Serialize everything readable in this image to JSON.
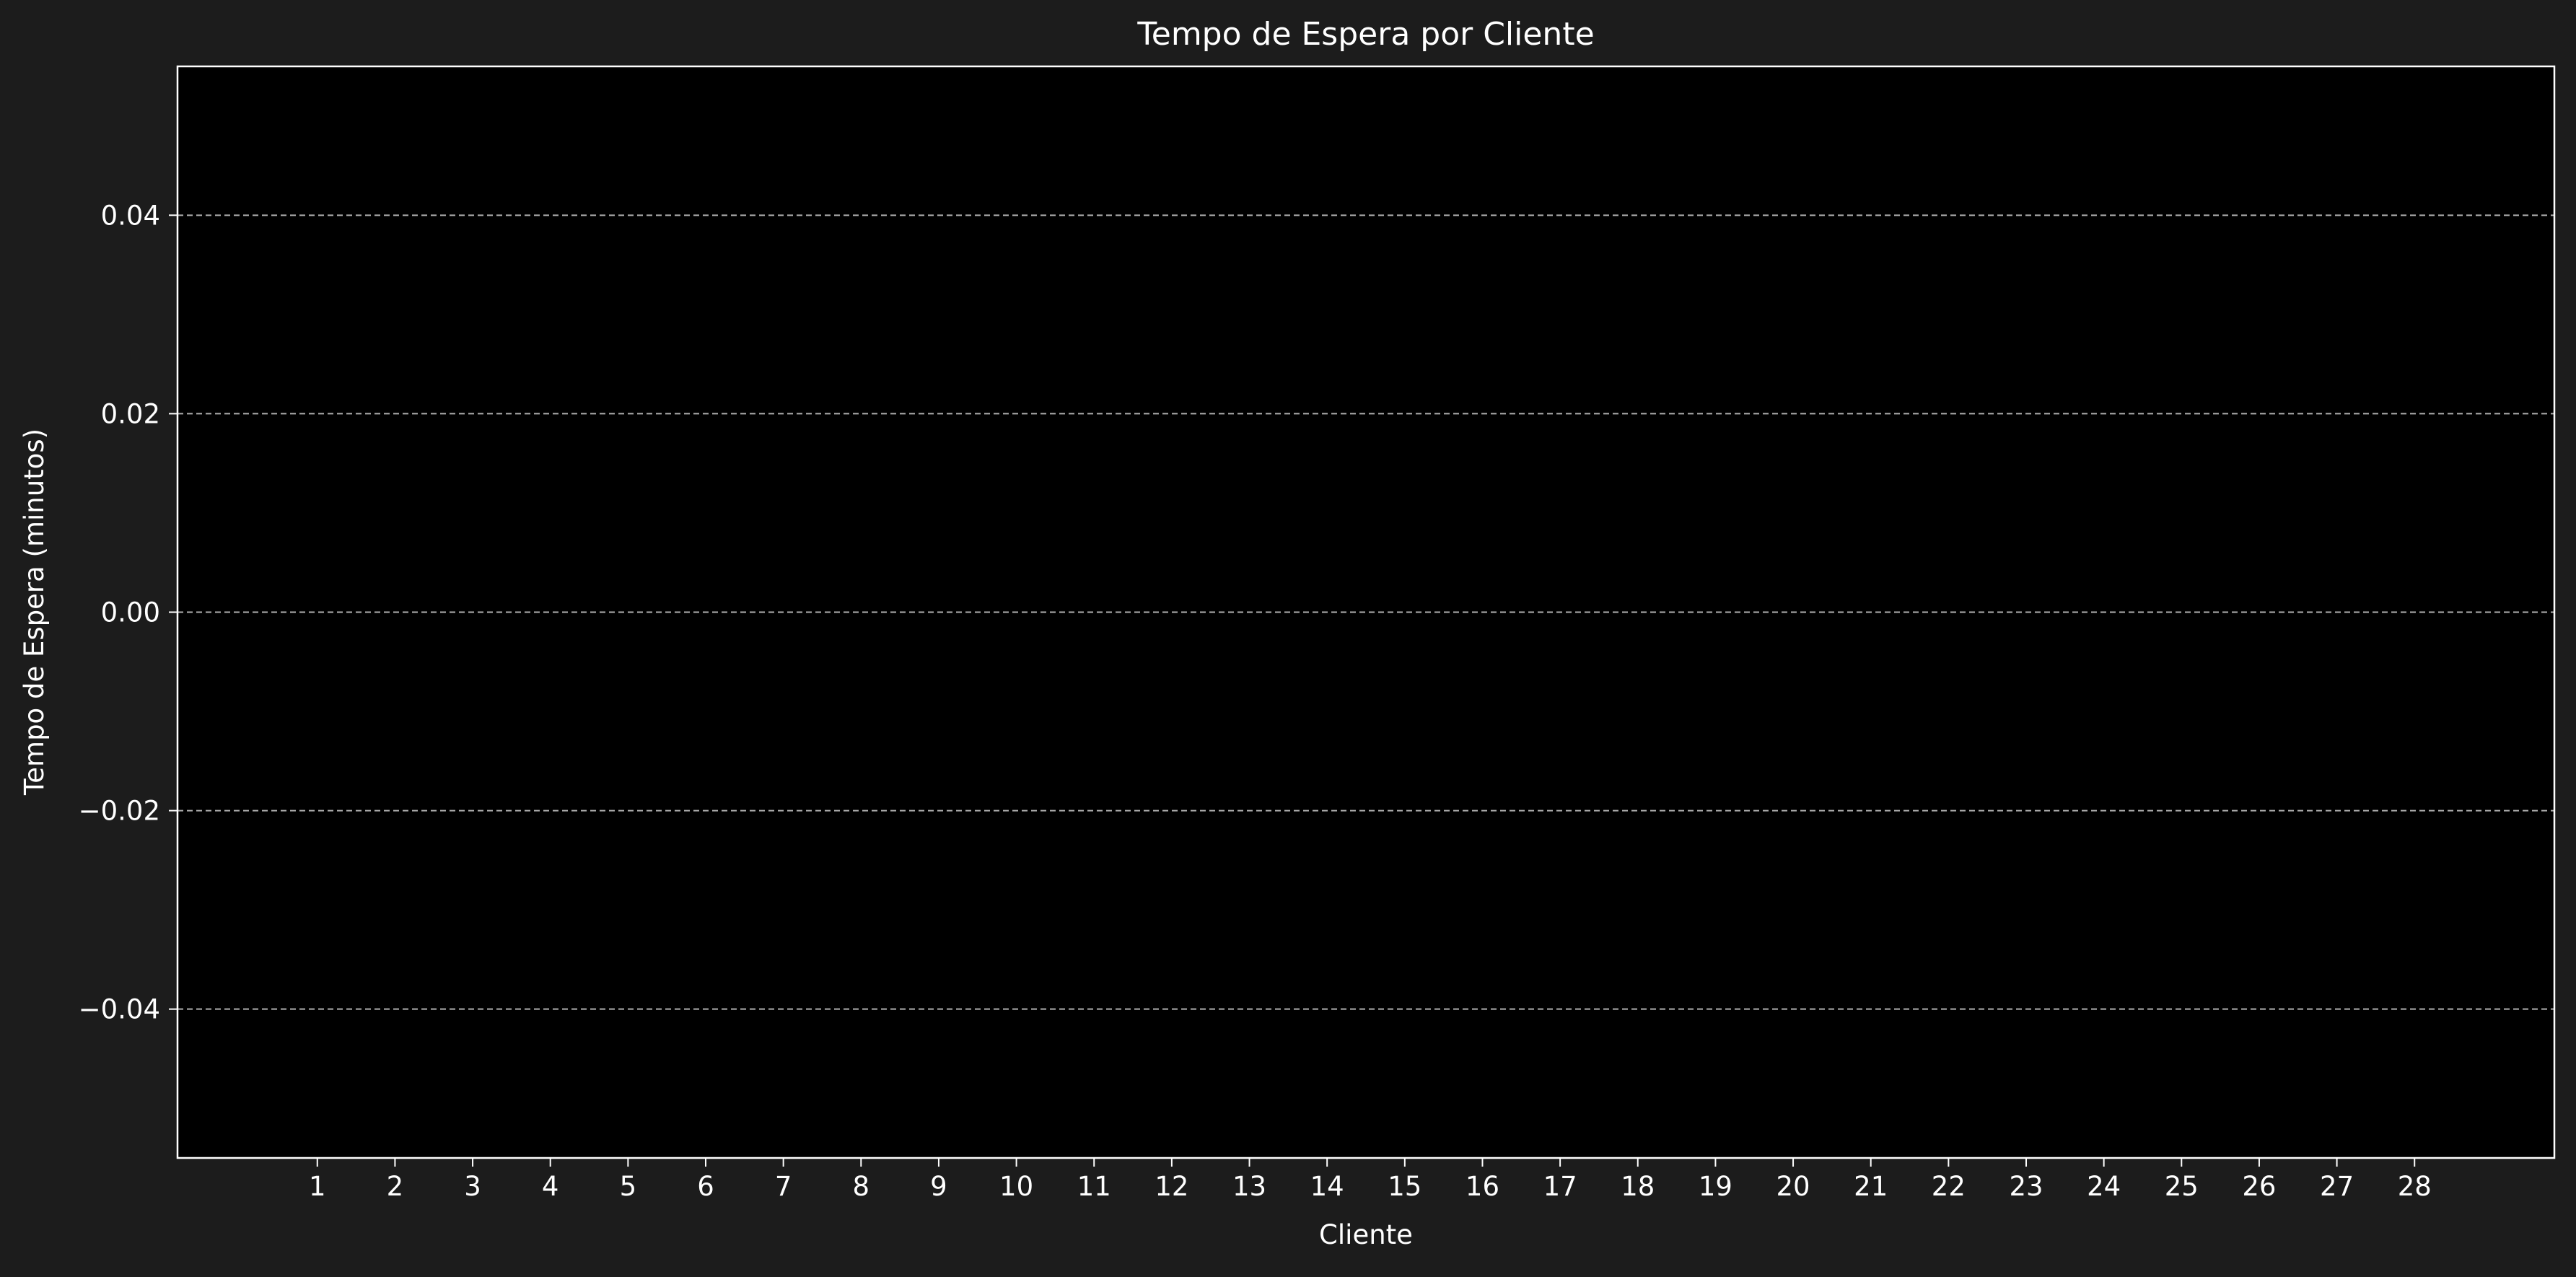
{
  "chart_data": {
    "type": "bar",
    "title": "Tempo de Espera por Cliente",
    "xlabel": "Cliente",
    "ylabel": "Tempo de Espera (minutos)",
    "categories": [
      "1",
      "2",
      "3",
      "4",
      "5",
      "6",
      "7",
      "8",
      "9",
      "10",
      "11",
      "12",
      "13",
      "14",
      "15",
      "16",
      "17",
      "18",
      "19",
      "20",
      "21",
      "22",
      "23",
      "24",
      "25",
      "26",
      "27",
      "28"
    ],
    "values": [
      0,
      0,
      0,
      0,
      0,
      0,
      0,
      0,
      0,
      0,
      0,
      0,
      0,
      0,
      0,
      0,
      0,
      0,
      0,
      0,
      0,
      0,
      0,
      0,
      0,
      0,
      0,
      0
    ],
    "ylim": [
      -0.055,
      0.055
    ],
    "xlim": [
      -0.8,
      29.8
    ],
    "yticks": [
      -0.04,
      -0.02,
      0.0,
      0.02,
      0.04
    ],
    "ytick_labels": [
      "−0.04",
      "−0.02",
      "0.00",
      "0.02",
      "0.04"
    ],
    "grid": "y-dashed",
    "colors": {
      "figure_background": "#1c1c1c",
      "axes_background": "#000000",
      "text": "#ffffff",
      "grid": "#b0b0b0",
      "spine": "#ffffff"
    }
  }
}
